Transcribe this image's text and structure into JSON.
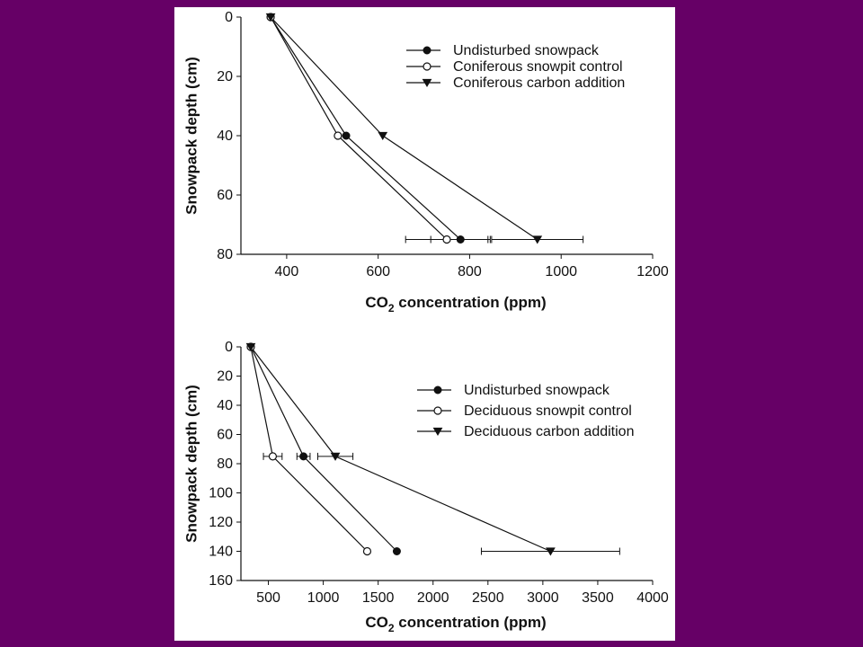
{
  "colors": {
    "background": "#660066",
    "panel": "#ffffff",
    "ink": "#111111"
  },
  "chart_data": [
    {
      "type": "line",
      "xlabel": "CO2 concentration (ppm)",
      "ylabel": "Snowpack depth (cm)",
      "xlim": [
        300,
        1200
      ],
      "ylim": [
        80,
        0
      ],
      "y_inverted": true,
      "xticks": [
        400,
        600,
        800,
        1000,
        1200
      ],
      "yticks": [
        0,
        20,
        40,
        60,
        80
      ],
      "legend_position": "top-right",
      "grid": false,
      "series": [
        {
          "name": "Undisturbed snowpack",
          "marker": "filled-circle",
          "points": [
            {
              "x": 365,
              "y": 0
            },
            {
              "x": 530,
              "y": 40
            },
            {
              "x": 780,
              "y": 75,
              "err": 65
            }
          ]
        },
        {
          "name": "Coniferous snowpit control",
          "marker": "open-circle",
          "points": [
            {
              "x": 365,
              "y": 0
            },
            {
              "x": 512,
              "y": 40
            },
            {
              "x": 750,
              "y": 75,
              "err": 90
            }
          ]
        },
        {
          "name": "Coniferous carbon addition",
          "marker": "filled-triangle-down",
          "points": [
            {
              "x": 365,
              "y": 0
            },
            {
              "x": 610,
              "y": 40
            },
            {
              "x": 948,
              "y": 75,
              "err": 100
            }
          ]
        }
      ]
    },
    {
      "type": "line",
      "xlabel": "CO2 concentration (ppm)",
      "ylabel": "Snowpack depth (cm)",
      "xlim": [
        250,
        4000
      ],
      "ylim": [
        160,
        0
      ],
      "y_inverted": true,
      "xticks": [
        500,
        1000,
        1500,
        2000,
        2500,
        3000,
        3500,
        4000
      ],
      "yticks": [
        0,
        20,
        40,
        60,
        80,
        100,
        120,
        140,
        160
      ],
      "legend_position": "top-right",
      "grid": false,
      "series": [
        {
          "name": "Undisturbed snowpack",
          "marker": "filled-circle",
          "points": [
            {
              "x": 340,
              "y": 0
            },
            {
              "x": 820,
              "y": 75,
              "err": 60
            },
            {
              "x": 1670,
              "y": 140
            }
          ]
        },
        {
          "name": "Deciduous snowpit control",
          "marker": "open-circle",
          "points": [
            {
              "x": 340,
              "y": 0
            },
            {
              "x": 540,
              "y": 75,
              "err": 85
            },
            {
              "x": 1400,
              "y": 140
            }
          ]
        },
        {
          "name": "Deciduous carbon addition",
          "marker": "filled-triangle-down",
          "points": [
            {
              "x": 340,
              "y": 0
            },
            {
              "x": 1110,
              "y": 75,
              "err": 160
            },
            {
              "x": 3070,
              "y": 140,
              "err": 630
            }
          ]
        }
      ]
    }
  ],
  "labels": {
    "xlabel_main": "CO",
    "xlabel_sub": "2",
    "xlabel_rest": " concentration (ppm)",
    "ylabel": "Snowpack depth (cm)"
  }
}
